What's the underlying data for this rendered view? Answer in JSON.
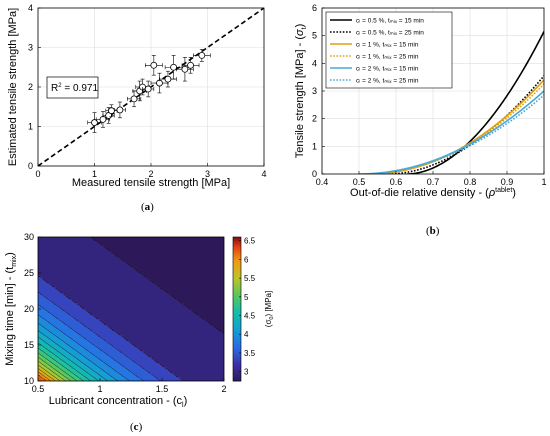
{
  "panel_labels": [
    "(a)",
    "(b)",
    "(c)"
  ],
  "colors": {
    "black": "#000000",
    "orange": "#e0a010",
    "blue": "#4aa8d8",
    "grid": "#dedede"
  },
  "chart_data": [
    {
      "type": "scatter",
      "xlabel": "Measured tensile strength [MPa]",
      "ylabel": "Estimated tensile strength [MPa]",
      "xlim": [
        0,
        4
      ],
      "ylim": [
        0,
        4
      ],
      "xticks": [
        0,
        1,
        2,
        3,
        4
      ],
      "yticks": [
        0,
        1,
        2,
        3,
        4
      ],
      "grid": true,
      "annotation": "R",
      "annotation_sup": "2",
      "annotation_rest": " = 0.971",
      "identity_line": true,
      "points": [
        {
          "x": 1.0,
          "y": 1.1,
          "xerr": 0.12,
          "yerr": 0.25
        },
        {
          "x": 1.15,
          "y": 1.18,
          "xerr": 0.12,
          "yerr": 0.2
        },
        {
          "x": 1.25,
          "y": 1.28,
          "xerr": 0.1,
          "yerr": 0.2
        },
        {
          "x": 1.3,
          "y": 1.4,
          "xerr": 0.1,
          "yerr": 0.15
        },
        {
          "x": 1.45,
          "y": 1.42,
          "xerr": 0.1,
          "yerr": 0.2
        },
        {
          "x": 1.7,
          "y": 1.7,
          "xerr": 0.12,
          "yerr": 0.2
        },
        {
          "x": 1.8,
          "y": 1.9,
          "xerr": 0.12,
          "yerr": 0.25
        },
        {
          "x": 1.85,
          "y": 2.0,
          "xerr": 0.12,
          "yerr": 0.2
        },
        {
          "x": 1.95,
          "y": 1.95,
          "xerr": 0.1,
          "yerr": 0.2
        },
        {
          "x": 2.05,
          "y": 2.55,
          "xerr": 0.15,
          "yerr": 0.25
        },
        {
          "x": 2.15,
          "y": 2.1,
          "xerr": 0.15,
          "yerr": 0.25
        },
        {
          "x": 2.3,
          "y": 2.2,
          "xerr": 0.15,
          "yerr": 0.2
        },
        {
          "x": 2.4,
          "y": 2.5,
          "xerr": 0.15,
          "yerr": 0.3
        },
        {
          "x": 2.6,
          "y": 2.45,
          "xerr": 0.15,
          "yerr": 0.3
        },
        {
          "x": 2.7,
          "y": 2.55,
          "xerr": 0.15,
          "yerr": 0.2
        },
        {
          "x": 2.9,
          "y": 2.8,
          "xerr": 0.15,
          "yerr": 0.15
        }
      ]
    },
    {
      "type": "line",
      "xlabel_main": "Out-of-die relative density - (",
      "xlabel_sym": "ρ",
      "xlabel_sup": "tablet",
      "xlabel_close": ")",
      "ylabel_main": "Tensile  strength [MPa] - (",
      "ylabel_sym": "σ",
      "ylabel_sub": "t",
      "ylabel_close": ")",
      "xlim": [
        0.4,
        1
      ],
      "ylim": [
        0,
        6
      ],
      "xticks": [
        "0.4",
        "0.5",
        "0.6",
        "0.7",
        "0.8",
        "0.9",
        "1"
      ],
      "yticks": [
        "0",
        "1",
        "2",
        "3",
        "4",
        "5",
        "6"
      ],
      "grid": true,
      "legend_position": "top-left",
      "series": [
        {
          "name": "cₗ = 0.5 %, tₘᵢₓ = 15 min",
          "color": "#000000",
          "dash": "solid",
          "x0": 0.63,
          "y_at_1": 5.15,
          "exp": 1.9
        },
        {
          "name": "cₗ = 0.5 %, tₘᵢₓ = 25 min",
          "color": "#000000",
          "dash": "dotted",
          "x0": 0.58,
          "y_at_1": 3.55,
          "exp": 1.9
        },
        {
          "name": "cₗ = 1 %, tₘᵢₓ = 15 min",
          "color": "#e0a010",
          "dash": "solid",
          "x0": 0.53,
          "y_at_1": 3.4,
          "exp": 2.0
        },
        {
          "name": "cₗ = 1 %, tₘᵢₓ = 25 min",
          "color": "#e0a010",
          "dash": "dotted",
          "x0": 0.525,
          "y_at_1": 3.25,
          "exp": 2.0
        },
        {
          "name": "cₗ = 2 %, tₘᵢₓ = 15 min",
          "color": "#4aa8d8",
          "dash": "solid",
          "x0": 0.5,
          "y_at_1": 3.0,
          "exp": 2.0
        },
        {
          "name": "cₗ = 2 %, tₘᵢₓ = 25 min",
          "color": "#4aa8d8",
          "dash": "dotted",
          "x0": 0.5,
          "y_at_1": 2.85,
          "exp": 2.0
        }
      ]
    },
    {
      "type": "heatmap",
      "xlabel_main": "Lubricant concentration - (c",
      "xlabel_sub": "l",
      "xlabel_close": ")",
      "ylabel_main": "Mixing time [min] - (t",
      "ylabel_sub": "mix",
      "ylabel_close": ")",
      "xlim": [
        0.5,
        2
      ],
      "ylim": [
        10,
        30
      ],
      "xticks": [
        "0.5",
        "1",
        "1.5",
        "2"
      ],
      "yticks": [
        "10",
        "15",
        "20",
        "25",
        "30"
      ],
      "colorbar_label_main": "(σ",
      "colorbar_label_sub": "0",
      "colorbar_label_close": ") [MPa]",
      "colorbar_range": [
        2.75,
        6.6
      ],
      "colorbar_ticks": [
        "3",
        "3.5",
        "4",
        "4.5",
        "5",
        "5.5",
        "6",
        "6.5"
      ],
      "contour_levels": [
        2.95,
        3.36,
        3.55,
        3.74,
        3.93,
        4.12,
        4.31,
        4.5,
        4.69,
        4.88,
        5.07,
        5.26,
        5.45,
        5.64,
        5.83,
        6.02,
        6.21
      ],
      "model": "2.82 + 3.8 * exp(-((c - 0.5)/0.6 + (t - 10)/7.5))"
    }
  ]
}
